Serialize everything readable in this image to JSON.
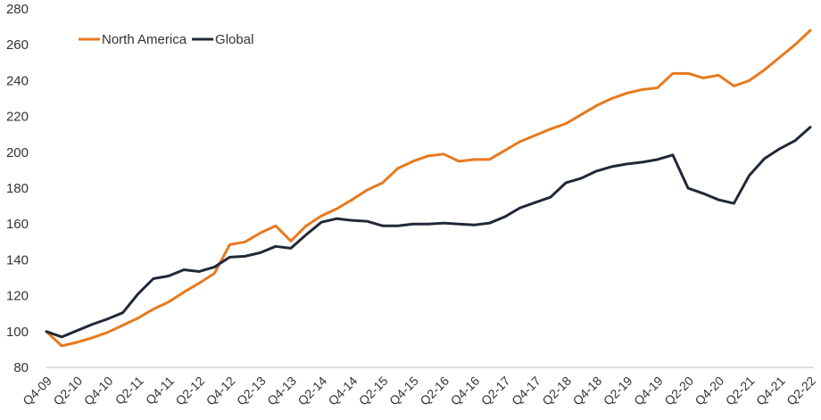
{
  "chart_data": {
    "type": "line",
    "title": "",
    "xlabel": "",
    "ylabel": "",
    "ylim": [
      80,
      280
    ],
    "yticks": [
      80,
      100,
      120,
      140,
      160,
      180,
      200,
      220,
      240,
      260,
      280
    ],
    "grid": false,
    "legend_placement": "top-left",
    "x": [
      "Q4-09",
      "Q1-10",
      "Q2-10",
      "Q3-10",
      "Q4-10",
      "Q1-11",
      "Q2-11",
      "Q3-11",
      "Q4-11",
      "Q1-12",
      "Q2-12",
      "Q3-12",
      "Q4-12",
      "Q1-13",
      "Q2-13",
      "Q3-13",
      "Q4-13",
      "Q1-14",
      "Q2-14",
      "Q3-14",
      "Q4-14",
      "Q1-15",
      "Q2-15",
      "Q3-15",
      "Q4-15",
      "Q1-16",
      "Q2-16",
      "Q3-16",
      "Q4-16",
      "Q1-17",
      "Q2-17",
      "Q3-17",
      "Q4-17",
      "Q1-18",
      "Q2-18",
      "Q3-18",
      "Q4-18",
      "Q1-19",
      "Q2-19",
      "Q3-19",
      "Q4-19",
      "Q1-20",
      "Q2-20",
      "Q3-20",
      "Q4-20",
      "Q1-21",
      "Q2-21",
      "Q3-21",
      "Q4-21",
      "Q1-22",
      "Q2-22"
    ],
    "x_tick_labels": [
      "Q4-09",
      "Q2-10",
      "Q4-10",
      "Q2-11",
      "Q4-11",
      "Q2-12",
      "Q4-12",
      "Q2-13",
      "Q4-13",
      "Q2-14",
      "Q4-14",
      "Q2-15",
      "Q4-15",
      "Q2-16",
      "Q4-16",
      "Q2-17",
      "Q4-17",
      "Q2-18",
      "Q4-18",
      "Q2-19",
      "Q4-19",
      "Q2-20",
      "Q4-20",
      "Q2-21",
      "Q4-21",
      "Q2-22"
    ],
    "series": [
      {
        "name": "North America",
        "color": "#E8791F",
        "values": [
          100,
          92,
          94,
          96.5,
          99.5,
          103.5,
          107.5,
          112.5,
          116.5,
          122,
          127,
          132.5,
          148.5,
          150,
          155,
          159,
          150.5,
          159,
          164.5,
          168.5,
          173.5,
          179,
          183,
          191,
          195,
          198,
          199,
          195,
          196,
          196,
          201,
          206,
          209.5,
          213,
          216,
          221,
          226,
          230,
          233,
          235,
          236,
          244,
          244,
          241.5,
          243,
          237,
          240,
          246,
          253,
          260,
          268
        ]
      },
      {
        "name": "Global",
        "color": "#202838",
        "values": [
          100,
          97,
          100.5,
          104,
          107,
          110.5,
          121,
          129.5,
          131,
          134.5,
          133.5,
          136,
          141.5,
          142,
          144,
          147.5,
          146.5,
          154,
          161,
          163,
          162,
          161.5,
          159,
          159,
          160,
          160,
          160.5,
          160,
          159.5,
          160.5,
          164,
          169,
          172,
          175,
          183,
          185.5,
          189.5,
          192,
          193.5,
          194.5,
          196,
          198.5,
          180,
          177,
          173.5,
          171.5,
          187,
          196.5,
          202,
          206.5,
          214
        ]
      }
    ]
  }
}
